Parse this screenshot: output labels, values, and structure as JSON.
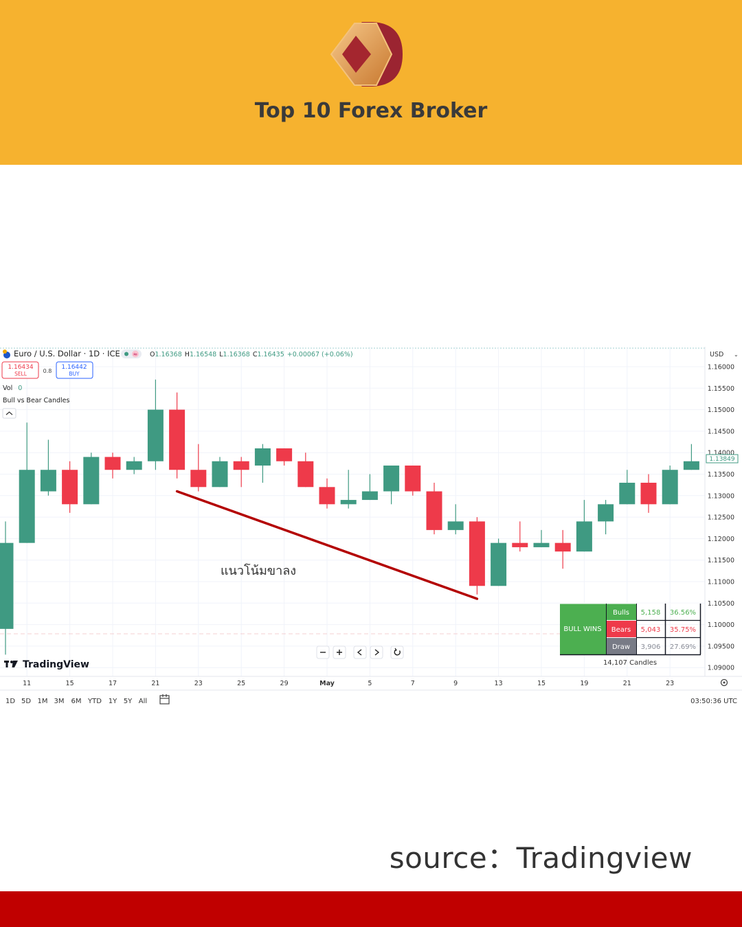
{
  "brand": {
    "title": "Top 10 Forex Broker"
  },
  "source_note": "source：Tradingview",
  "colors": {
    "header": "#f6b22f",
    "footer": "#c00000",
    "bull": "#3f9a82",
    "bear": "#ee3a4a",
    "trendline": "#b30000",
    "bulls_green": "#4caf50"
  },
  "toolbar": {
    "symbol": "Euro / U.S. Dollar · 1D · ICE",
    "ohlc": {
      "o_label": "O",
      "o": "1.16368",
      "h_label": "H",
      "h": "1.16548",
      "l_label": "L",
      "l": "1.16368",
      "c_label": "C",
      "c": "1.16435",
      "change": "+0.00067 (+0.06%)"
    },
    "sell_price": "1.16434",
    "sell_label": "SELL",
    "spread": "0.8",
    "buy_price": "1.16442",
    "buy_label": "BUY",
    "vol_label": "Vol",
    "vol_value": "0",
    "indicator": "Bull vs Bear Candles",
    "currency": "USD",
    "watermark": "TradingView",
    "ranges": [
      "1D",
      "5D",
      "1M",
      "3M",
      "6M",
      "YTD",
      "1Y",
      "5Y",
      "All"
    ],
    "clock": "03:50:36 UTC"
  },
  "stats": {
    "verdict": "BULL WINS",
    "rows": [
      {
        "label": "Bulls",
        "count": "5,158",
        "pct": "36.56%"
      },
      {
        "label": "Bears",
        "count": "5,043",
        "pct": "35.75%"
      },
      {
        "label": "Draw",
        "count": "3,906",
        "pct": "27.69%"
      }
    ],
    "total": "14,107 Candles"
  },
  "chart_data": {
    "type": "candlestick",
    "ylim": [
      1.088,
      1.1635
    ],
    "y_ticks": [
      "1.16000",
      "1.15500",
      "1.15000",
      "1.14500",
      "1.14000",
      "1.13500",
      "1.13000",
      "1.12500",
      "1.12000",
      "1.11500",
      "1.11000",
      "1.10500",
      "1.10000",
      "1.09500",
      "1.09000"
    ],
    "current_price": "1.13849",
    "x_ticks": [
      "11",
      "15",
      "17",
      "21",
      "23",
      "25",
      "29",
      "May",
      "5",
      "7",
      "9",
      "13",
      "15",
      "19",
      "21",
      "23"
    ],
    "candles": [
      {
        "o": 1.099,
        "h": 1.124,
        "l": 1.093,
        "c": 1.119
      },
      {
        "o": 1.119,
        "h": 1.147,
        "l": 1.119,
        "c": 1.136
      },
      {
        "o": 1.131,
        "h": 1.143,
        "l": 1.13,
        "c": 1.136
      },
      {
        "o": 1.136,
        "h": 1.138,
        "l": 1.126,
        "c": 1.128
      },
      {
        "o": 1.128,
        "h": 1.14,
        "l": 1.128,
        "c": 1.139
      },
      {
        "o": 1.139,
        "h": 1.14,
        "l": 1.134,
        "c": 1.136
      },
      {
        "o": 1.136,
        "h": 1.139,
        "l": 1.135,
        "c": 1.138
      },
      {
        "o": 1.138,
        "h": 1.157,
        "l": 1.136,
        "c": 1.15
      },
      {
        "o": 1.15,
        "h": 1.154,
        "l": 1.134,
        "c": 1.136
      },
      {
        "o": 1.136,
        "h": 1.142,
        "l": 1.131,
        "c": 1.132
      },
      {
        "o": 1.132,
        "h": 1.139,
        "l": 1.132,
        "c": 1.138
      },
      {
        "o": 1.138,
        "h": 1.139,
        "l": 1.132,
        "c": 1.136
      },
      {
        "o": 1.137,
        "h": 1.142,
        "l": 1.133,
        "c": 1.141
      },
      {
        "o": 1.141,
        "h": 1.141,
        "l": 1.137,
        "c": 1.138
      },
      {
        "o": 1.138,
        "h": 1.14,
        "l": 1.132,
        "c": 1.132
      },
      {
        "o": 1.132,
        "h": 1.134,
        "l": 1.127,
        "c": 1.128
      },
      {
        "o": 1.128,
        "h": 1.136,
        "l": 1.127,
        "c": 1.129
      },
      {
        "o": 1.129,
        "h": 1.135,
        "l": 1.129,
        "c": 1.131
      },
      {
        "o": 1.131,
        "h": 1.137,
        "l": 1.128,
        "c": 1.137
      },
      {
        "o": 1.137,
        "h": 1.137,
        "l": 1.13,
        "c": 1.131
      },
      {
        "o": 1.131,
        "h": 1.133,
        "l": 1.121,
        "c": 1.122
      },
      {
        "o": 1.122,
        "h": 1.128,
        "l": 1.121,
        "c": 1.124
      },
      {
        "o": 1.124,
        "h": 1.125,
        "l": 1.107,
        "c": 1.109
      },
      {
        "o": 1.109,
        "h": 1.12,
        "l": 1.109,
        "c": 1.119
      },
      {
        "o": 1.119,
        "h": 1.124,
        "l": 1.117,
        "c": 1.118
      },
      {
        "o": 1.118,
        "h": 1.122,
        "l": 1.118,
        "c": 1.119
      },
      {
        "o": 1.119,
        "h": 1.122,
        "l": 1.113,
        "c": 1.117
      },
      {
        "o": 1.117,
        "h": 1.129,
        "l": 1.117,
        "c": 1.124
      },
      {
        "o": 1.124,
        "h": 1.129,
        "l": 1.121,
        "c": 1.128
      },
      {
        "o": 1.128,
        "h": 1.136,
        "l": 1.128,
        "c": 1.133
      },
      {
        "o": 1.133,
        "h": 1.135,
        "l": 1.126,
        "c": 1.128
      },
      {
        "o": 1.128,
        "h": 1.137,
        "l": 1.128,
        "c": 1.136
      },
      {
        "o": 1.136,
        "h": 1.142,
        "l": 1.136,
        "c": 1.138
      }
    ],
    "annotation": {
      "text": "แนวโน้มขาลง",
      "from": {
        "index": 8,
        "value": 1.131
      },
      "to": {
        "index": 22,
        "value": 1.106
      }
    }
  }
}
